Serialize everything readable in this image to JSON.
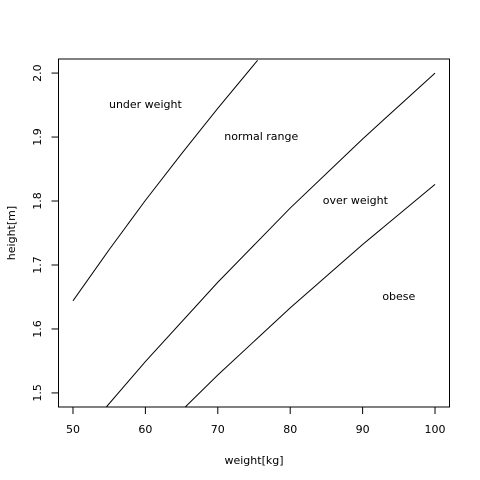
{
  "chart_data": {
    "type": "line",
    "xlabel": "weight[kg]",
    "ylabel": "height[m]",
    "xlim": [
      48,
      102
    ],
    "ylim": [
      1.478,
      2.022
    ],
    "xticks": [
      50,
      60,
      70,
      80,
      90,
      100
    ],
    "yticks": [
      1.5,
      1.6,
      1.7,
      1.8,
      1.9,
      {
        "value": 2,
        "label": "2.0"
      }
    ],
    "series": [
      {
        "color": "#000000",
        "x": [
          50,
          55,
          60,
          65,
          70,
          75.5
        ],
        "values": [
          1.644,
          1.724,
          1.801,
          1.874,
          1.945,
          2.02
        ]
      },
      {
        "color": "#000000",
        "x": [
          54.6,
          60,
          70,
          80,
          90,
          100
        ],
        "values": [
          1.478,
          1.549,
          1.673,
          1.789,
          1.897,
          2.0
        ]
      },
      {
        "color": "#000000",
        "x": [
          65.5,
          70,
          80,
          90,
          100
        ],
        "values": [
          1.478,
          1.528,
          1.633,
          1.732,
          1.826
        ]
      }
    ],
    "annotations": [
      {
        "text": "under weight",
        "x": 60,
        "y": 1.95
      },
      {
        "text": "normal range",
        "x": 76,
        "y": 1.9
      },
      {
        "text": "over weight",
        "x": 89,
        "y": 1.8
      },
      {
        "text": "obese",
        "x": 95,
        "y": 1.65
      }
    ]
  }
}
